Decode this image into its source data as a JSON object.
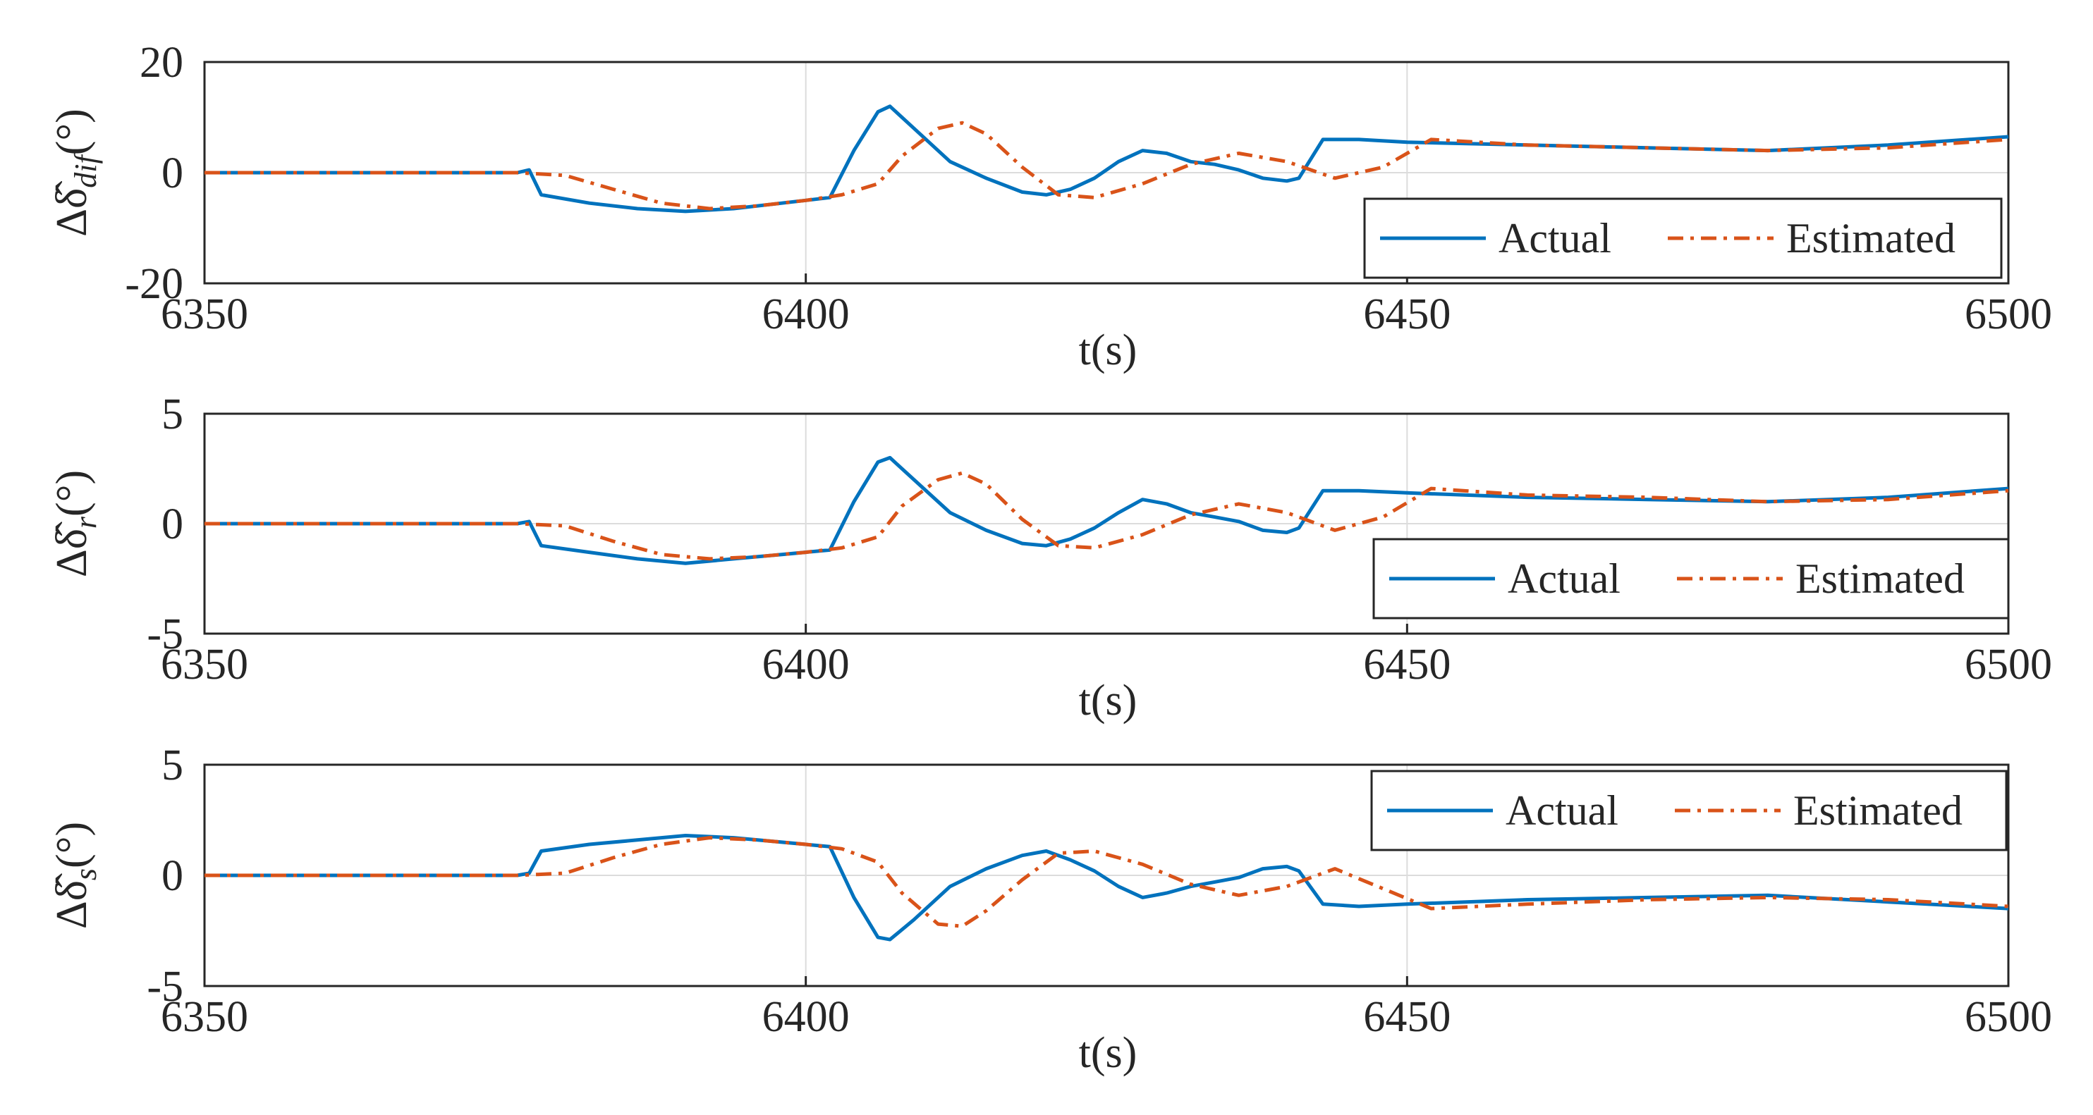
{
  "chart_data": [
    {
      "type": "line",
      "ylabel": {
        "delta": "Δ",
        "symbol": "δ̂",
        "subscript": "dif",
        "unit": "(°)"
      },
      "xlabel": "t(s)",
      "xlim": [
        6350,
        6500
      ],
      "ylim": [
        -20,
        20
      ],
      "xticks": [
        "6350",
        "6400",
        "6450",
        "6500"
      ],
      "yticks": [
        "20",
        "0",
        "-20"
      ],
      "grid": true,
      "legend": {
        "position": "bottom-right",
        "entries": [
          "Actual",
          "Estimated"
        ]
      },
      "series": [
        {
          "name": "Actual",
          "color": "#0072BD",
          "style": "solid",
          "x": [
            6350,
            6376,
            6377,
            6378,
            6382,
            6386,
            6390,
            6394,
            6398,
            6402,
            6404,
            6406,
            6407,
            6409,
            6412,
            6415,
            6418,
            6420,
            6422,
            6424,
            6426,
            6428,
            6430,
            6432,
            6434,
            6436,
            6438,
            6440,
            6441,
            6443,
            6446,
            6450,
            6460,
            6470,
            6480,
            6490,
            6500
          ],
          "y": [
            0,
            0,
            0.5,
            -4,
            -5.5,
            -6.5,
            -7,
            -6.5,
            -5.5,
            -4.5,
            4,
            11,
            12,
            8,
            2,
            -1,
            -3.5,
            -4,
            -3,
            -1,
            2,
            4,
            3.5,
            2,
            1.5,
            0.5,
            -1,
            -1.5,
            -1,
            6,
            6,
            5.5,
            5,
            4.5,
            4,
            5,
            6.5
          ]
        },
        {
          "name": "Estimated",
          "color": "#D95319",
          "style": "dashdot",
          "x": [
            6350,
            6376,
            6380,
            6384,
            6388,
            6392,
            6396,
            6400,
            6403,
            6406,
            6408,
            6411,
            6413,
            6415,
            6418,
            6421,
            6424,
            6428,
            6432,
            6436,
            6440,
            6444,
            6448,
            6452,
            6460,
            6470,
            6480,
            6490,
            6500
          ],
          "y": [
            0,
            0,
            -0.5,
            -3,
            -5.5,
            -6.5,
            -6,
            -5,
            -4,
            -2,
            3,
            8,
            9,
            7,
            1,
            -4,
            -4.5,
            -2,
            1.5,
            3.5,
            2,
            -1,
            1,
            6,
            5,
            4.5,
            4,
            4.5,
            6
          ]
        }
      ]
    },
    {
      "type": "line",
      "ylabel": {
        "delta": "Δ",
        "symbol": "δ̂",
        "subscript": "r",
        "unit": "(°)"
      },
      "xlabel": "t(s)",
      "xlim": [
        6350,
        6500
      ],
      "ylim": [
        -5,
        5
      ],
      "xticks": [
        "6350",
        "6400",
        "6450",
        "6500"
      ],
      "yticks": [
        "5",
        "0",
        "-5"
      ],
      "grid": true,
      "legend": {
        "position": "bottom-right",
        "entries": [
          "Actual",
          "Estimated"
        ]
      },
      "series": [
        {
          "name": "Actual",
          "color": "#0072BD",
          "style": "solid",
          "x": [
            6350,
            6376,
            6377,
            6378,
            6382,
            6386,
            6390,
            6394,
            6398,
            6402,
            6404,
            6406,
            6407,
            6409,
            6412,
            6415,
            6418,
            6420,
            6422,
            6424,
            6426,
            6428,
            6430,
            6432,
            6434,
            6436,
            6438,
            6440,
            6441,
            6443,
            6446,
            6450,
            6460,
            6470,
            6480,
            6490,
            6500
          ],
          "y": [
            0,
            0,
            0.1,
            -1,
            -1.3,
            -1.6,
            -1.8,
            -1.6,
            -1.4,
            -1.2,
            1,
            2.8,
            3,
            2,
            0.5,
            -0.3,
            -0.9,
            -1,
            -0.7,
            -0.2,
            0.5,
            1.1,
            0.9,
            0.5,
            0.3,
            0.1,
            -0.3,
            -0.4,
            -0.2,
            1.5,
            1.5,
            1.4,
            1.2,
            1.1,
            1,
            1.2,
            1.6
          ]
        },
        {
          "name": "Estimated",
          "color": "#D95319",
          "style": "dashdot",
          "x": [
            6350,
            6376,
            6380,
            6384,
            6388,
            6392,
            6396,
            6400,
            6403,
            6406,
            6408,
            6411,
            6413,
            6415,
            6418,
            6421,
            6424,
            6428,
            6432,
            6436,
            6440,
            6444,
            6448,
            6452,
            6460,
            6470,
            6480,
            6490,
            6500
          ],
          "y": [
            0,
            0,
            -0.1,
            -0.8,
            -1.4,
            -1.6,
            -1.5,
            -1.3,
            -1.1,
            -0.6,
            0.8,
            2,
            2.3,
            1.8,
            0.2,
            -1,
            -1.1,
            -0.5,
            0.4,
            0.9,
            0.5,
            -0.3,
            0.3,
            1.6,
            1.3,
            1.2,
            1,
            1.1,
            1.5
          ]
        }
      ]
    },
    {
      "type": "line",
      "ylabel": {
        "delta": "Δ",
        "symbol": "δ̂",
        "subscript": "s",
        "unit": "(°)"
      },
      "xlabel": "t(s)",
      "xlim": [
        6350,
        6500
      ],
      "ylim": [
        -5,
        5
      ],
      "xticks": [
        "6350",
        "6400",
        "6450",
        "6500"
      ],
      "yticks": [
        "5",
        "0",
        "-5"
      ],
      "grid": true,
      "legend": {
        "position": "top-right",
        "entries": [
          "Actual",
          "Estimated"
        ]
      },
      "series": [
        {
          "name": "Actual",
          "color": "#0072BD",
          "style": "solid",
          "x": [
            6350,
            6376,
            6377,
            6378,
            6382,
            6386,
            6390,
            6394,
            6398,
            6402,
            6404,
            6406,
            6407,
            6409,
            6412,
            6415,
            6418,
            6420,
            6422,
            6424,
            6426,
            6428,
            6430,
            6432,
            6434,
            6436,
            6438,
            6440,
            6441,
            6443,
            6446,
            6450,
            6460,
            6470,
            6480,
            6490,
            6500
          ],
          "y": [
            0,
            0,
            0.1,
            1.1,
            1.4,
            1.6,
            1.8,
            1.7,
            1.5,
            1.3,
            -1,
            -2.8,
            -2.9,
            -2,
            -0.5,
            0.3,
            0.9,
            1.1,
            0.7,
            0.2,
            -0.5,
            -1,
            -0.8,
            -0.5,
            -0.3,
            -0.1,
            0.3,
            0.4,
            0.2,
            -1.3,
            -1.4,
            -1.3,
            -1.1,
            -1,
            -0.9,
            -1.2,
            -1.5
          ]
        },
        {
          "name": "Estimated",
          "color": "#D95319",
          "style": "dashdot",
          "x": [
            6350,
            6376,
            6380,
            6384,
            6388,
            6392,
            6396,
            6400,
            6403,
            6406,
            6408,
            6411,
            6413,
            6415,
            6418,
            6421,
            6424,
            6428,
            6432,
            6436,
            6440,
            6444,
            6448,
            6452,
            6460,
            6470,
            6480,
            6490,
            6500
          ],
          "y": [
            0,
            0,
            0.1,
            0.8,
            1.4,
            1.7,
            1.6,
            1.4,
            1.2,
            0.6,
            -0.8,
            -2.2,
            -2.3,
            -1.6,
            -0.2,
            1,
            1.1,
            0.5,
            -0.4,
            -0.9,
            -0.5,
            0.3,
            -0.6,
            -1.5,
            -1.3,
            -1.1,
            -1,
            -1.1,
            -1.4
          ]
        }
      ]
    }
  ]
}
